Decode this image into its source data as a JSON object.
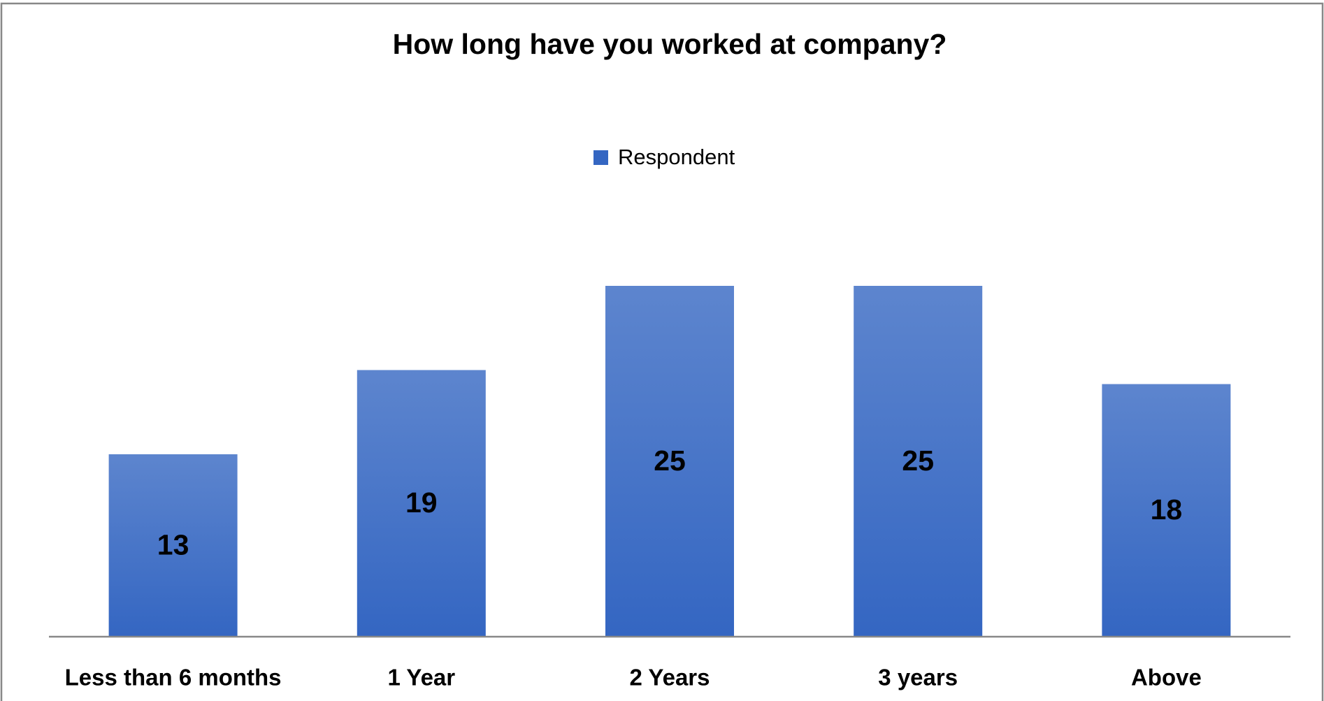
{
  "chart_data": {
    "type": "bar",
    "title": "How long have you worked at company?",
    "categories": [
      "Less than 6 months",
      "1 Year",
      "2 Years",
      "3 years",
      "Above"
    ],
    "series": [
      {
        "name": "Respondent",
        "color": "#3466c2",
        "values": [
          13,
          19,
          25,
          25,
          18
        ]
      }
    ],
    "legend": "top"
  }
}
